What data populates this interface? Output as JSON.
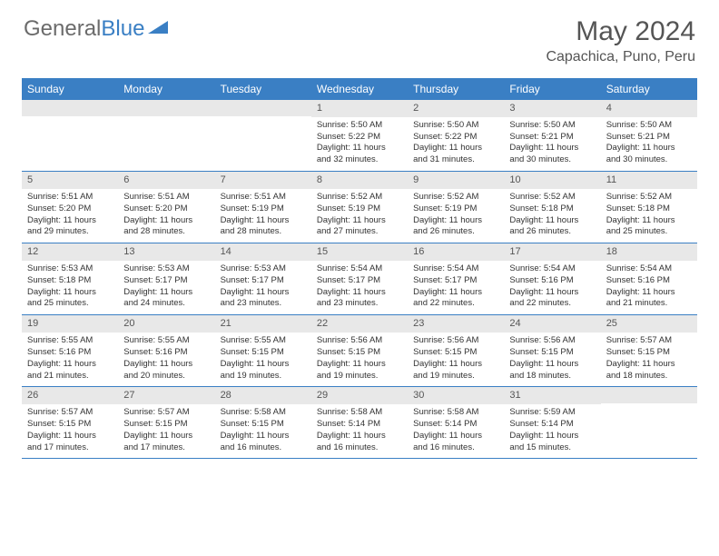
{
  "logo": {
    "text1": "General",
    "text2": "Blue"
  },
  "title": "May 2024",
  "location": "Capachica, Puno, Peru",
  "day_headers": [
    "Sunday",
    "Monday",
    "Tuesday",
    "Wednesday",
    "Thursday",
    "Friday",
    "Saturday"
  ],
  "colors": {
    "header_bg": "#3a7fc4",
    "header_text": "#ffffff",
    "daynum_bg": "#e8e8e8",
    "text": "#333333",
    "title_text": "#555555",
    "row_border": "#3a7fc4"
  },
  "weeks": [
    [
      null,
      null,
      null,
      {
        "n": "1",
        "sr": "5:50 AM",
        "ss": "5:22 PM",
        "dl": "11 hours and 32 minutes."
      },
      {
        "n": "2",
        "sr": "5:50 AM",
        "ss": "5:22 PM",
        "dl": "11 hours and 31 minutes."
      },
      {
        "n": "3",
        "sr": "5:50 AM",
        "ss": "5:21 PM",
        "dl": "11 hours and 30 minutes."
      },
      {
        "n": "4",
        "sr": "5:50 AM",
        "ss": "5:21 PM",
        "dl": "11 hours and 30 minutes."
      }
    ],
    [
      {
        "n": "5",
        "sr": "5:51 AM",
        "ss": "5:20 PM",
        "dl": "11 hours and 29 minutes."
      },
      {
        "n": "6",
        "sr": "5:51 AM",
        "ss": "5:20 PM",
        "dl": "11 hours and 28 minutes."
      },
      {
        "n": "7",
        "sr": "5:51 AM",
        "ss": "5:19 PM",
        "dl": "11 hours and 28 minutes."
      },
      {
        "n": "8",
        "sr": "5:52 AM",
        "ss": "5:19 PM",
        "dl": "11 hours and 27 minutes."
      },
      {
        "n": "9",
        "sr": "5:52 AM",
        "ss": "5:19 PM",
        "dl": "11 hours and 26 minutes."
      },
      {
        "n": "10",
        "sr": "5:52 AM",
        "ss": "5:18 PM",
        "dl": "11 hours and 26 minutes."
      },
      {
        "n": "11",
        "sr": "5:52 AM",
        "ss": "5:18 PM",
        "dl": "11 hours and 25 minutes."
      }
    ],
    [
      {
        "n": "12",
        "sr": "5:53 AM",
        "ss": "5:18 PM",
        "dl": "11 hours and 25 minutes."
      },
      {
        "n": "13",
        "sr": "5:53 AM",
        "ss": "5:17 PM",
        "dl": "11 hours and 24 minutes."
      },
      {
        "n": "14",
        "sr": "5:53 AM",
        "ss": "5:17 PM",
        "dl": "11 hours and 23 minutes."
      },
      {
        "n": "15",
        "sr": "5:54 AM",
        "ss": "5:17 PM",
        "dl": "11 hours and 23 minutes."
      },
      {
        "n": "16",
        "sr": "5:54 AM",
        "ss": "5:17 PM",
        "dl": "11 hours and 22 minutes."
      },
      {
        "n": "17",
        "sr": "5:54 AM",
        "ss": "5:16 PM",
        "dl": "11 hours and 22 minutes."
      },
      {
        "n": "18",
        "sr": "5:54 AM",
        "ss": "5:16 PM",
        "dl": "11 hours and 21 minutes."
      }
    ],
    [
      {
        "n": "19",
        "sr": "5:55 AM",
        "ss": "5:16 PM",
        "dl": "11 hours and 21 minutes."
      },
      {
        "n": "20",
        "sr": "5:55 AM",
        "ss": "5:16 PM",
        "dl": "11 hours and 20 minutes."
      },
      {
        "n": "21",
        "sr": "5:55 AM",
        "ss": "5:15 PM",
        "dl": "11 hours and 19 minutes."
      },
      {
        "n": "22",
        "sr": "5:56 AM",
        "ss": "5:15 PM",
        "dl": "11 hours and 19 minutes."
      },
      {
        "n": "23",
        "sr": "5:56 AM",
        "ss": "5:15 PM",
        "dl": "11 hours and 19 minutes."
      },
      {
        "n": "24",
        "sr": "5:56 AM",
        "ss": "5:15 PM",
        "dl": "11 hours and 18 minutes."
      },
      {
        "n": "25",
        "sr": "5:57 AM",
        "ss": "5:15 PM",
        "dl": "11 hours and 18 minutes."
      }
    ],
    [
      {
        "n": "26",
        "sr": "5:57 AM",
        "ss": "5:15 PM",
        "dl": "11 hours and 17 minutes."
      },
      {
        "n": "27",
        "sr": "5:57 AM",
        "ss": "5:15 PM",
        "dl": "11 hours and 17 minutes."
      },
      {
        "n": "28",
        "sr": "5:58 AM",
        "ss": "5:15 PM",
        "dl": "11 hours and 16 minutes."
      },
      {
        "n": "29",
        "sr": "5:58 AM",
        "ss": "5:14 PM",
        "dl": "11 hours and 16 minutes."
      },
      {
        "n": "30",
        "sr": "5:58 AM",
        "ss": "5:14 PM",
        "dl": "11 hours and 16 minutes."
      },
      {
        "n": "31",
        "sr": "5:59 AM",
        "ss": "5:14 PM",
        "dl": "11 hours and 15 minutes."
      },
      null
    ]
  ],
  "labels": {
    "sunrise": "Sunrise:",
    "sunset": "Sunset:",
    "daylight": "Daylight:"
  }
}
